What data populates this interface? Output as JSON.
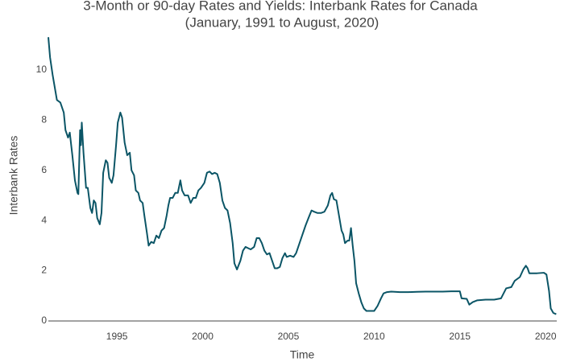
{
  "chart_data": {
    "type": "line",
    "title": "3-Month or 90-day Rates and Yields: Interbank Rates for Canada",
    "subtitle": "(January, 1991 to August, 2020)",
    "x_label": "Time",
    "y_label": "Interbank Rates",
    "color": "#0b5566",
    "zeroline": true,
    "xlim": [
      1991,
      2020.65
    ],
    "xticks": [
      1995,
      2000,
      2005,
      2010,
      2015,
      2020
    ],
    "ylim": [
      0,
      11.5
    ],
    "yticks": [
      0,
      2,
      4,
      6,
      8,
      10
    ],
    "x": [
      1991.0,
      1991.1,
      1991.25,
      1991.5,
      1991.7,
      1991.9,
      1992.0,
      1992.15,
      1992.25,
      1992.4,
      1992.55,
      1992.7,
      1992.75,
      1992.85,
      1992.9,
      1992.95,
      1993.05,
      1993.2,
      1993.3,
      1993.45,
      1993.55,
      1993.65,
      1993.75,
      1993.85,
      1994.0,
      1994.1,
      1994.2,
      1994.35,
      1994.45,
      1994.55,
      1994.7,
      1994.8,
      1994.95,
      1995.05,
      1995.2,
      1995.3,
      1995.45,
      1995.6,
      1995.75,
      1995.85,
      1996.0,
      1996.1,
      1996.25,
      1996.35,
      1996.5,
      1996.6,
      1996.75,
      1996.85,
      1997.0,
      1997.15,
      1997.3,
      1997.45,
      1997.6,
      1997.75,
      1997.9,
      1998.0,
      1998.1,
      1998.25,
      1998.4,
      1998.55,
      1998.7,
      1998.8,
      1998.95,
      1999.15,
      1999.3,
      1999.45,
      1999.6,
      1999.75,
      1999.9,
      2000.1,
      2000.25,
      2000.4,
      2000.55,
      2000.7,
      2000.85,
      2001.0,
      2001.15,
      2001.3,
      2001.45,
      2001.6,
      2001.75,
      2001.85,
      2002.0,
      2002.2,
      2002.35,
      2002.5,
      2002.65,
      2002.8,
      2003.0,
      2003.15,
      2003.3,
      2003.45,
      2003.6,
      2003.75,
      2003.9,
      2004.05,
      2004.2,
      2004.35,
      2004.5,
      2004.65,
      2004.8,
      2004.9,
      2005.1,
      2005.3,
      2005.45,
      2005.6,
      2005.8,
      2006.0,
      2006.2,
      2006.35,
      2006.5,
      2006.7,
      2006.9,
      2007.1,
      2007.3,
      2007.45,
      2007.55,
      2007.65,
      2007.8,
      2007.95,
      2008.1,
      2008.2,
      2008.3,
      2008.45,
      2008.55,
      2008.65,
      2008.75,
      2008.85,
      2008.95,
      2009.1,
      2009.25,
      2009.4,
      2009.55,
      2009.7,
      2010.0,
      2010.2,
      2010.4,
      2010.55,
      2010.75,
      2011.0,
      2011.5,
      2012.0,
      2012.5,
      2013.0,
      2014.0,
      2014.5,
      2015.0,
      2015.1,
      2015.4,
      2015.55,
      2015.75,
      2016.0,
      2016.5,
      2017.0,
      2017.4,
      2017.55,
      2017.7,
      2018.0,
      2018.2,
      2018.5,
      2018.7,
      2018.85,
      2018.95,
      2019.05,
      2019.5,
      2019.9,
      2020.05,
      2020.2,
      2020.3,
      2020.45,
      2020.62
    ],
    "values": [
      11.3,
      10.5,
      9.8,
      8.8,
      8.7,
      8.3,
      7.6,
      7.3,
      7.5,
      6.6,
      5.6,
      5.1,
      5.05,
      7.6,
      7.0,
      7.9,
      6.7,
      5.3,
      5.3,
      4.5,
      4.3,
      4.8,
      4.7,
      4.1,
      3.85,
      4.3,
      5.9,
      6.4,
      6.3,
      5.7,
      5.5,
      5.8,
      7.0,
      7.9,
      8.3,
      8.1,
      7.1,
      6.6,
      6.7,
      6.0,
      5.8,
      5.2,
      5.1,
      4.8,
      4.7,
      4.2,
      3.5,
      3.0,
      3.15,
      3.1,
      3.4,
      3.3,
      3.6,
      3.7,
      4.2,
      4.6,
      4.9,
      4.9,
      5.1,
      5.1,
      5.6,
      5.2,
      5.0,
      5.0,
      4.7,
      4.9,
      4.9,
      5.2,
      5.3,
      5.5,
      5.9,
      5.95,
      5.85,
      5.9,
      5.85,
      5.5,
      4.8,
      4.5,
      4.4,
      3.9,
      3.1,
      2.3,
      2.05,
      2.4,
      2.8,
      2.95,
      2.9,
      2.85,
      2.95,
      3.3,
      3.3,
      3.1,
      2.8,
      2.65,
      2.7,
      2.4,
      2.1,
      2.1,
      2.15,
      2.5,
      2.7,
      2.55,
      2.6,
      2.55,
      2.7,
      3.0,
      3.4,
      3.8,
      4.15,
      4.4,
      4.35,
      4.3,
      4.3,
      4.35,
      4.6,
      5.0,
      5.1,
      4.85,
      4.8,
      4.2,
      3.6,
      3.45,
      3.1,
      3.2,
      3.2,
      3.7,
      3.0,
      2.4,
      1.5,
      1.1,
      0.75,
      0.5,
      0.4,
      0.4,
      0.4,
      0.6,
      0.9,
      1.1,
      1.15,
      1.17,
      1.15,
      1.15,
      1.16,
      1.17,
      1.17,
      1.18,
      1.18,
      0.9,
      0.88,
      0.65,
      0.75,
      0.82,
      0.85,
      0.85,
      0.9,
      1.1,
      1.3,
      1.35,
      1.6,
      1.75,
      2.05,
      2.2,
      2.1,
      1.9,
      1.9,
      1.92,
      1.85,
      1.2,
      0.5,
      0.32,
      0.27
    ]
  }
}
